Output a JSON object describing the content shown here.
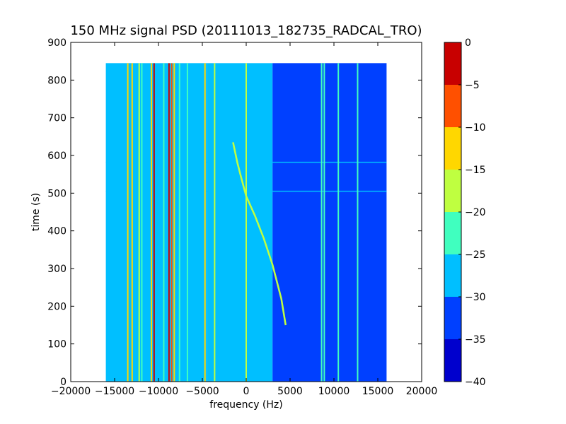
{
  "chart_data": {
    "type": "heatmap",
    "title": "150 MHz signal PSD (20111013_182735_RADCAL_TRO)",
    "xlabel": "frequency (Hz)",
    "ylabel": "time (s)",
    "xlim": [
      -20000,
      20000
    ],
    "ylim": [
      0,
      900
    ],
    "x_ticks": [
      -20000,
      -15000,
      -10000,
      -5000,
      0,
      5000,
      10000,
      15000,
      20000
    ],
    "x_tick_labels": [
      "−20000",
      "−15000",
      "−10000",
      "−5000",
      "0",
      "5000",
      "10000",
      "15000",
      "20000"
    ],
    "y_ticks": [
      0,
      100,
      200,
      300,
      400,
      500,
      600,
      700,
      800,
      900
    ],
    "y_tick_labels": [
      "0",
      "100",
      "200",
      "300",
      "400",
      "500",
      "600",
      "700",
      "800",
      "900"
    ],
    "data_extent": {
      "x": [
        -16000,
        16000
      ],
      "y": [
        0,
        845
      ]
    },
    "colorbar": {
      "levels": [
        -40,
        -35,
        -30,
        -25,
        -20,
        -15,
        -10,
        -5,
        0
      ],
      "tick_labels": [
        "−40",
        "−35",
        "−30",
        "−25",
        "−20",
        "−15",
        "−10",
        "−5",
        "0"
      ],
      "colors": [
        "#0000cd",
        "#0040ff",
        "#00bfff",
        "#40ffbf",
        "#bfff40",
        "#ffd700",
        "#ff5000",
        "#c80000"
      ]
    },
    "background_bands": [
      {
        "x": [
          -16000,
          -4500
        ],
        "level": -28
      },
      {
        "x": [
          -4500,
          3000
        ],
        "level": -30
      },
      {
        "x": [
          3000,
          8500
        ],
        "level": -31
      },
      {
        "x": [
          8500,
          16000
        ],
        "level": -34
      }
    ],
    "vertical_lines": [
      {
        "x": -13500,
        "level": -14
      },
      {
        "x": -13000,
        "level": -12
      },
      {
        "x": -12200,
        "level": -18
      },
      {
        "x": -11900,
        "level": -22
      },
      {
        "x": -10800,
        "level": -12
      },
      {
        "x": -10500,
        "level": -4
      },
      {
        "x": -9400,
        "level": -22
      },
      {
        "x": -8800,
        "level": -3
      },
      {
        "x": -8500,
        "level": -8
      },
      {
        "x": -8200,
        "level": -12
      },
      {
        "x": -7600,
        "level": -24
      },
      {
        "x": -6700,
        "level": -22
      },
      {
        "x": -4700,
        "level": -15
      },
      {
        "x": -3600,
        "level": -18
      },
      {
        "x": 0,
        "level": -20
      },
      {
        "x": 8600,
        "level": -25
      },
      {
        "x": 8900,
        "level": -25
      },
      {
        "x": 10500,
        "level": -25
      },
      {
        "x": 12700,
        "level": -25
      }
    ],
    "horizontal_lines": [
      {
        "y": 505,
        "level": -26
      },
      {
        "y": 582,
        "level": -26
      }
    ],
    "sweep_curve": {
      "level": -20,
      "points": [
        {
          "x": -1500,
          "y": 635
        },
        {
          "x": -1000,
          "y": 580
        },
        {
          "x": -500,
          "y": 535
        },
        {
          "x": 0,
          "y": 492
        },
        {
          "x": 1000,
          "y": 440
        },
        {
          "x": 2000,
          "y": 380
        },
        {
          "x": 3000,
          "y": 310
        },
        {
          "x": 4000,
          "y": 220
        },
        {
          "x": 4500,
          "y": 150
        }
      ]
    }
  }
}
